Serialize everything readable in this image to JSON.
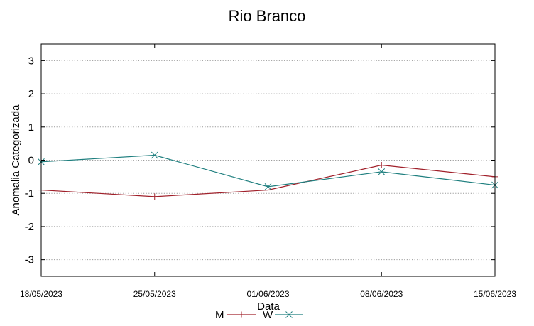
{
  "chart_data": {
    "type": "line",
    "title": "Rio Branco",
    "xlabel": "Data",
    "ylabel": "Anomalia Categorizada",
    "categories": [
      "18/05/2023",
      "25/05/2023",
      "01/06/2023",
      "08/06/2023",
      "15/06/2023"
    ],
    "ylim": [
      -3.5,
      3.5
    ],
    "yticks": [
      3,
      2,
      1,
      0,
      -1,
      -2,
      -3
    ],
    "ytick_labels": [
      "3",
      "2",
      "1",
      "0",
      "-1",
      "-2",
      "-3"
    ],
    "grid": true,
    "legend_position": "bottom-center",
    "series": [
      {
        "name": "M",
        "values": [
          -0.9,
          -1.1,
          -0.9,
          -0.15,
          -0.5
        ],
        "color": "#a0202a",
        "marker": "plus"
      },
      {
        "name": "W",
        "values": [
          -0.05,
          0.15,
          -0.8,
          -0.35,
          -0.75
        ],
        "color": "#1f7f7f",
        "marker": "cross"
      }
    ]
  }
}
